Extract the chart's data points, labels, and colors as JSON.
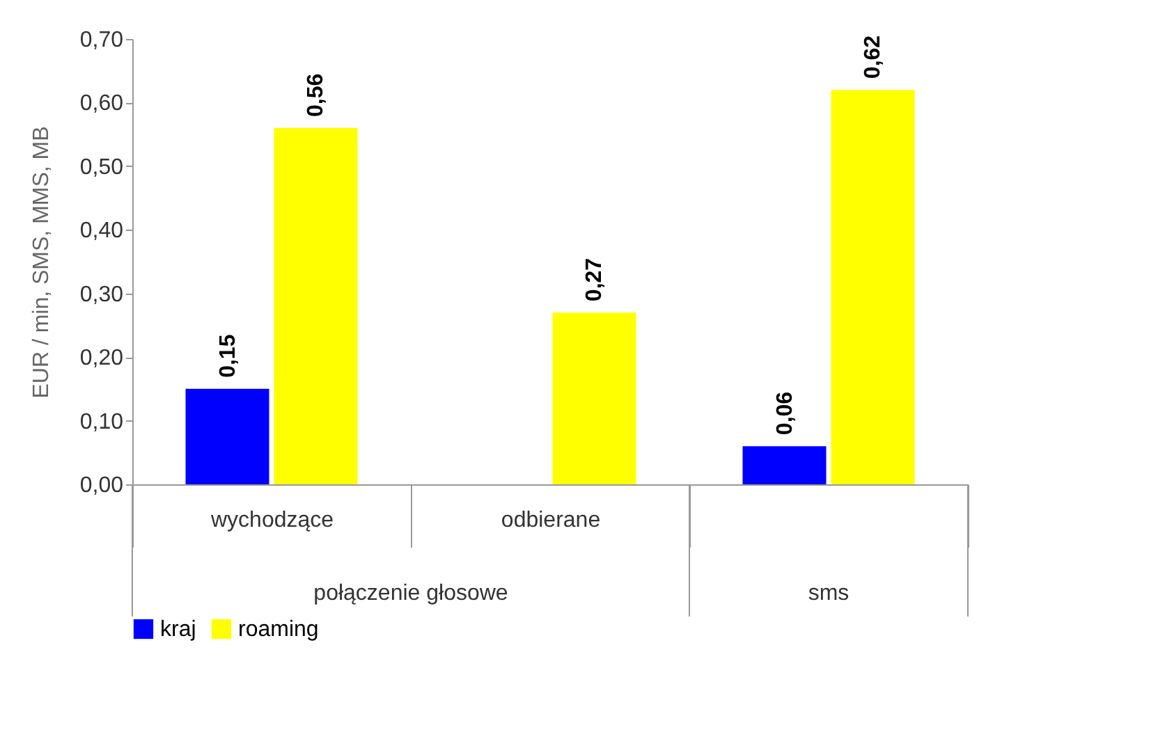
{
  "chart_data": {
    "type": "bar",
    "ylabel": "EUR / min, SMS, MMS, MB",
    "categories": [
      "wychodzące",
      "odbierane",
      null
    ],
    "series": [
      {
        "name": "kraj",
        "color": "#0000ff",
        "values": [
          0.15,
          null,
          0.06
        ],
        "value_labels": [
          "0,15",
          null,
          "0,06"
        ]
      },
      {
        "name": "roaming",
        "color": "#ffff00",
        "values": [
          0.56,
          0.27,
          0.62
        ],
        "value_labels": [
          "0,56",
          "0,27",
          "0,62"
        ]
      }
    ],
    "annotations": [
      "połączenie głosowe",
      "sms"
    ],
    "ylim": [
      0,
      0.7
    ],
    "yticks": [
      {
        "value": 0,
        "label": "0,00"
      },
      {
        "value": 0.1,
        "label": "0,10"
      },
      {
        "value": 0.2,
        "label": "0,20"
      },
      {
        "value": 0.3,
        "label": "0,30"
      },
      {
        "value": 0.4,
        "label": "0,40"
      },
      {
        "value": 0.5,
        "label": "0,50"
      },
      {
        "value": 0.6,
        "label": "0,60"
      },
      {
        "value": 0.7,
        "label": "0,70"
      }
    ],
    "grid": false,
    "legend": "bottom"
  }
}
